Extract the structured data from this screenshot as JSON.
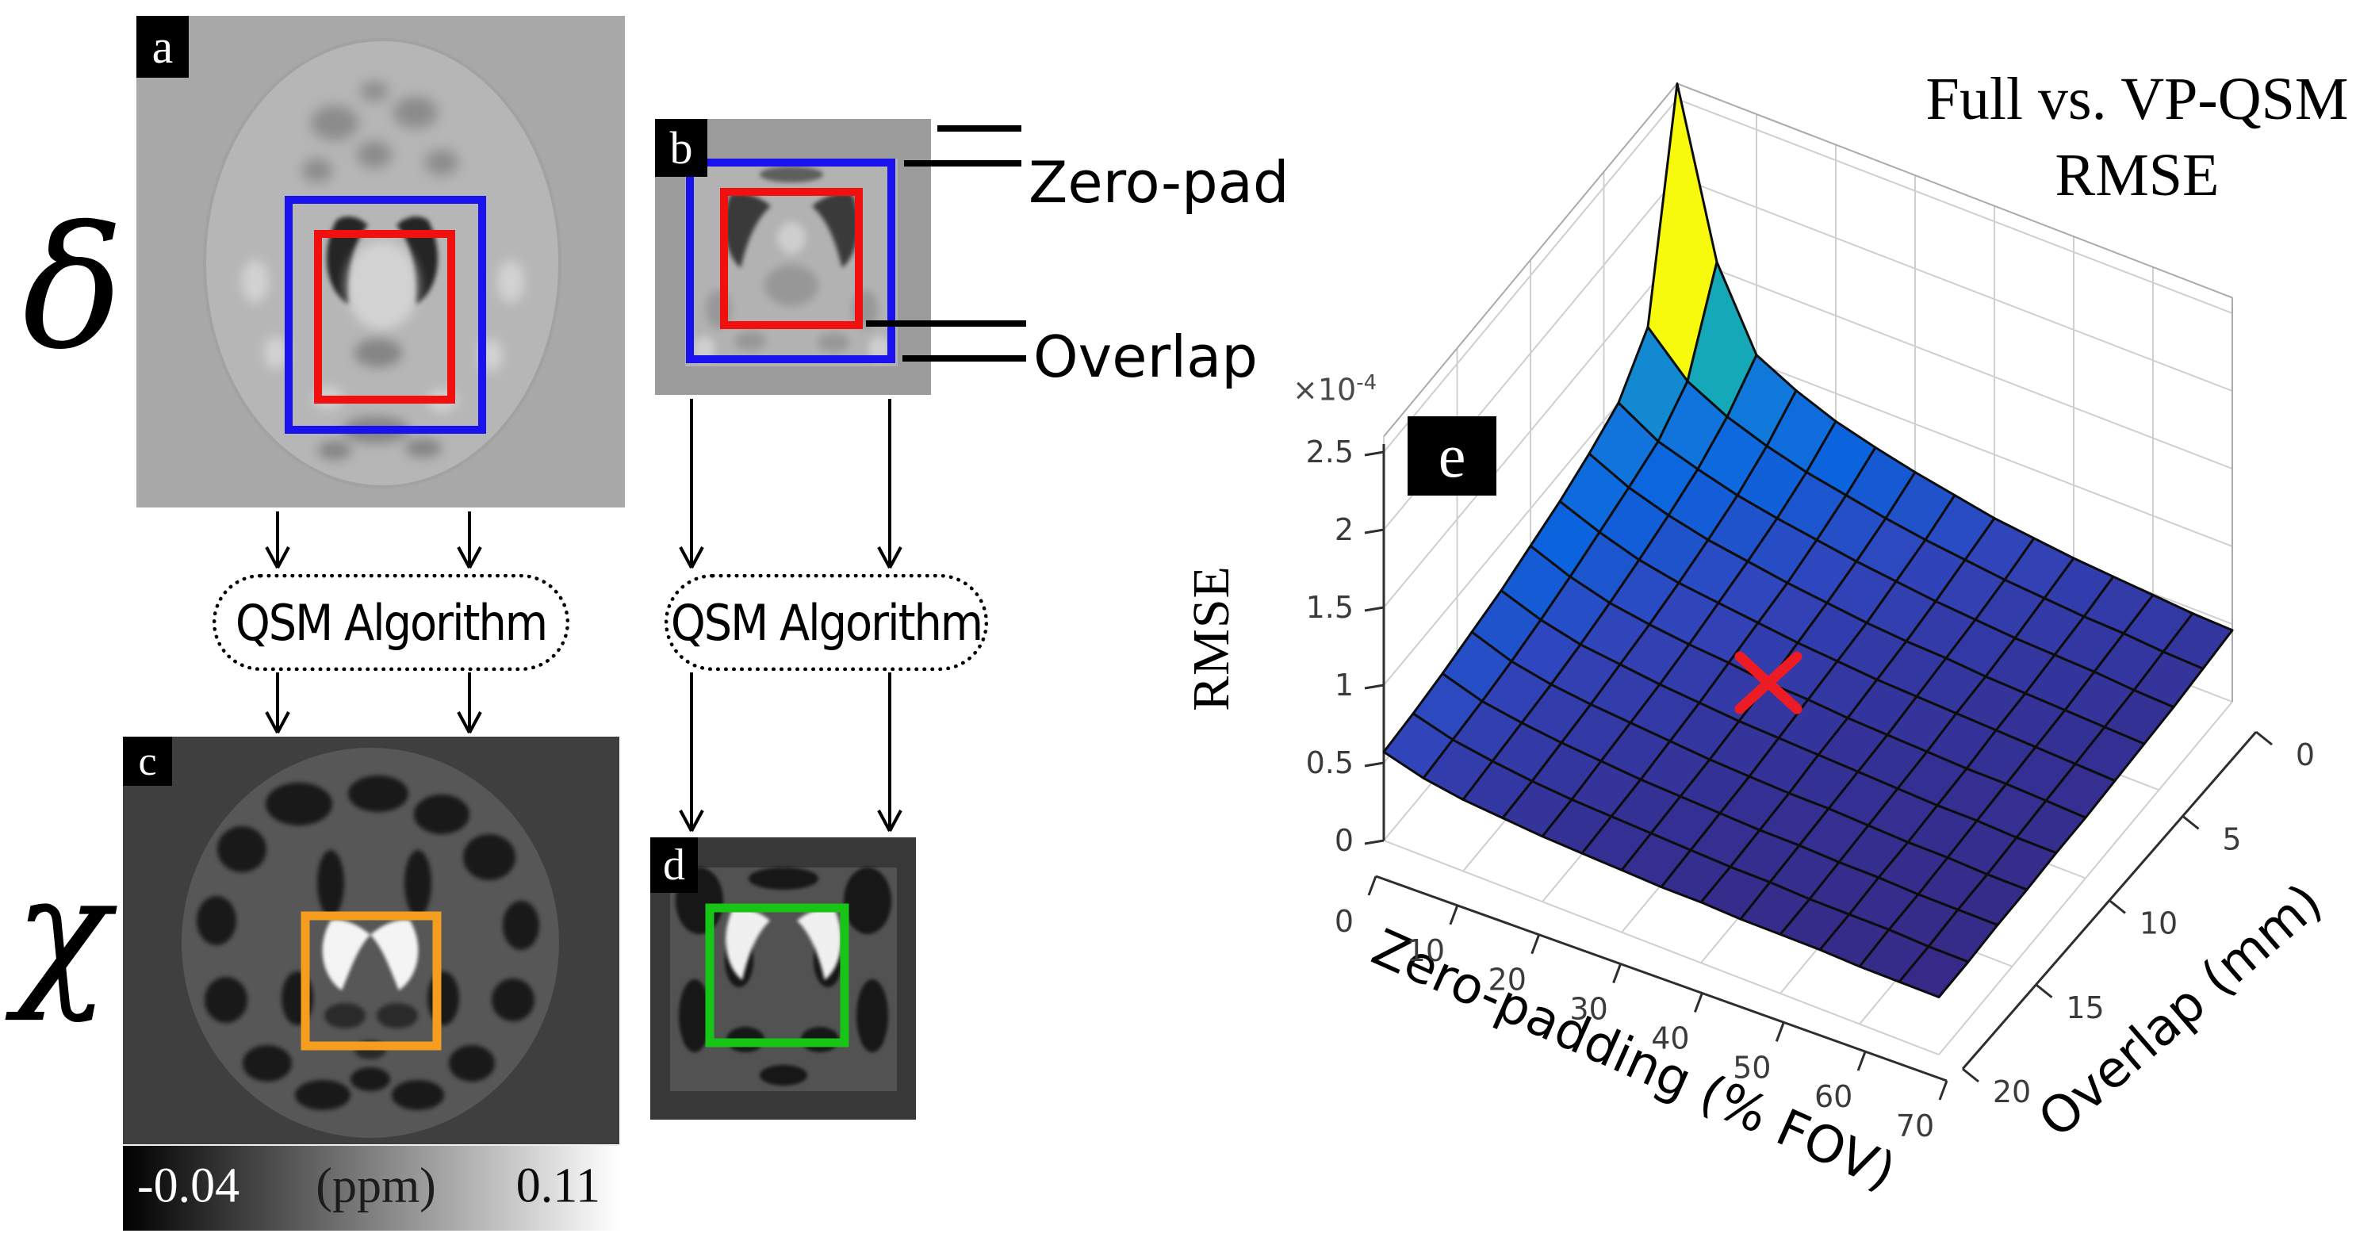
{
  "figure": {
    "panel_labels": {
      "a": "a",
      "b": "b",
      "c": "c",
      "d": "d",
      "e": "e"
    },
    "symbols": {
      "input_field": "δ",
      "susceptibility": "χ"
    },
    "flow": {
      "qsm_left": "QSM Algorithm",
      "qsm_right": "QSM Algorithm"
    },
    "annotations": {
      "zero_pad": "Zero-pad",
      "overlap": "Overlap"
    },
    "colorbar": {
      "min": "-0.04",
      "units": "(ppm)",
      "max": "0.11"
    },
    "roi_colors": {
      "blue": "#1a12ee",
      "red": "#f01010",
      "orange": "#f59d1e",
      "green": "#17c517"
    }
  },
  "chart_data": {
    "type": "heatmap",
    "render": "3d-surface",
    "title_line1": "Full vs. VP-QSM",
    "title_line2": "RMSE",
    "xlabel": "Zero-padding (% FOV)",
    "ylabel": "Overlap (mm)",
    "zlabel": "RMSE",
    "z_scale_base": "×10",
    "z_scale_exp": "-4",
    "x_ticks": [
      0,
      10,
      20,
      30,
      40,
      50,
      60,
      70
    ],
    "y_ticks": [
      0,
      5,
      10,
      15,
      20
    ],
    "z_ticks": [
      0,
      0.5,
      1,
      1.5,
      2,
      2.5
    ],
    "xlim": [
      0,
      70
    ],
    "ylim": [
      0,
      20
    ],
    "zlim_1e4": [
      0,
      2.6
    ],
    "grid": true,
    "colormap": "parula",
    "colormap_stops": [
      [
        0.0,
        "#352a87"
      ],
      [
        0.1,
        "#3145bc"
      ],
      [
        0.2,
        "#0b63dd"
      ],
      [
        0.3,
        "#1177dc"
      ],
      [
        0.4,
        "#1289d0"
      ],
      [
        0.5,
        "#07a2c2"
      ],
      [
        0.6,
        "#35b6a0"
      ],
      [
        0.7,
        "#8dbe70"
      ],
      [
        0.8,
        "#d2bb57"
      ],
      [
        0.9,
        "#fdc32c"
      ],
      [
        1.0,
        "#f8fa0d"
      ]
    ],
    "zero_padding_pct": [
      0,
      5,
      10,
      15,
      20,
      25,
      30,
      35,
      40,
      45,
      50,
      55,
      60,
      65,
      70
    ],
    "overlap_mm": [
      0,
      2,
      4,
      6,
      8,
      10,
      12,
      14,
      16,
      18,
      20
    ],
    "rmse_1e4": [
      [
        2.6,
        1.55,
        1.05,
        0.92,
        0.82,
        0.75,
        0.69,
        0.64,
        0.59,
        0.56,
        0.53,
        0.51,
        0.49,
        0.47,
        0.46
      ],
      [
        1.26,
        1.01,
        0.88,
        0.79,
        0.72,
        0.67,
        0.62,
        0.58,
        0.55,
        0.52,
        0.5,
        0.48,
        0.47,
        0.45,
        0.44
      ],
      [
        1.0,
        0.85,
        0.77,
        0.7,
        0.65,
        0.61,
        0.57,
        0.54,
        0.51,
        0.49,
        0.47,
        0.46,
        0.45,
        0.43,
        0.42
      ],
      [
        0.9,
        0.78,
        0.7,
        0.64,
        0.6,
        0.56,
        0.53,
        0.5,
        0.48,
        0.47,
        0.45,
        0.44,
        0.43,
        0.42,
        0.41
      ],
      [
        0.82,
        0.72,
        0.64,
        0.59,
        0.56,
        0.53,
        0.5,
        0.48,
        0.46,
        0.45,
        0.44,
        0.43,
        0.42,
        0.41,
        0.4
      ],
      [
        0.76,
        0.66,
        0.59,
        0.55,
        0.52,
        0.5,
        0.47,
        0.46,
        0.44,
        0.43,
        0.42,
        0.41,
        0.41,
        0.4,
        0.39
      ],
      [
        0.7,
        0.61,
        0.55,
        0.52,
        0.49,
        0.47,
        0.45,
        0.44,
        0.43,
        0.42,
        0.41,
        0.4,
        0.4,
        0.39,
        0.39
      ],
      [
        0.66,
        0.57,
        0.52,
        0.49,
        0.47,
        0.45,
        0.43,
        0.42,
        0.41,
        0.41,
        0.4,
        0.39,
        0.39,
        0.38,
        0.38
      ],
      [
        0.62,
        0.54,
        0.5,
        0.47,
        0.45,
        0.43,
        0.42,
        0.41,
        0.4,
        0.4,
        0.39,
        0.39,
        0.38,
        0.38,
        0.38
      ],
      [
        0.59,
        0.52,
        0.48,
        0.45,
        0.43,
        0.42,
        0.41,
        0.4,
        0.39,
        0.39,
        0.38,
        0.38,
        0.38,
        0.37,
        0.37
      ],
      [
        0.57,
        0.5,
        0.46,
        0.44,
        0.42,
        0.41,
        0.4,
        0.39,
        0.39,
        0.38,
        0.38,
        0.38,
        0.37,
        0.37,
        0.37
      ]
    ],
    "marker": {
      "label": "×",
      "zero_padding_pct": 30,
      "overlap_mm": 10,
      "color": "#ed1b24"
    }
  }
}
